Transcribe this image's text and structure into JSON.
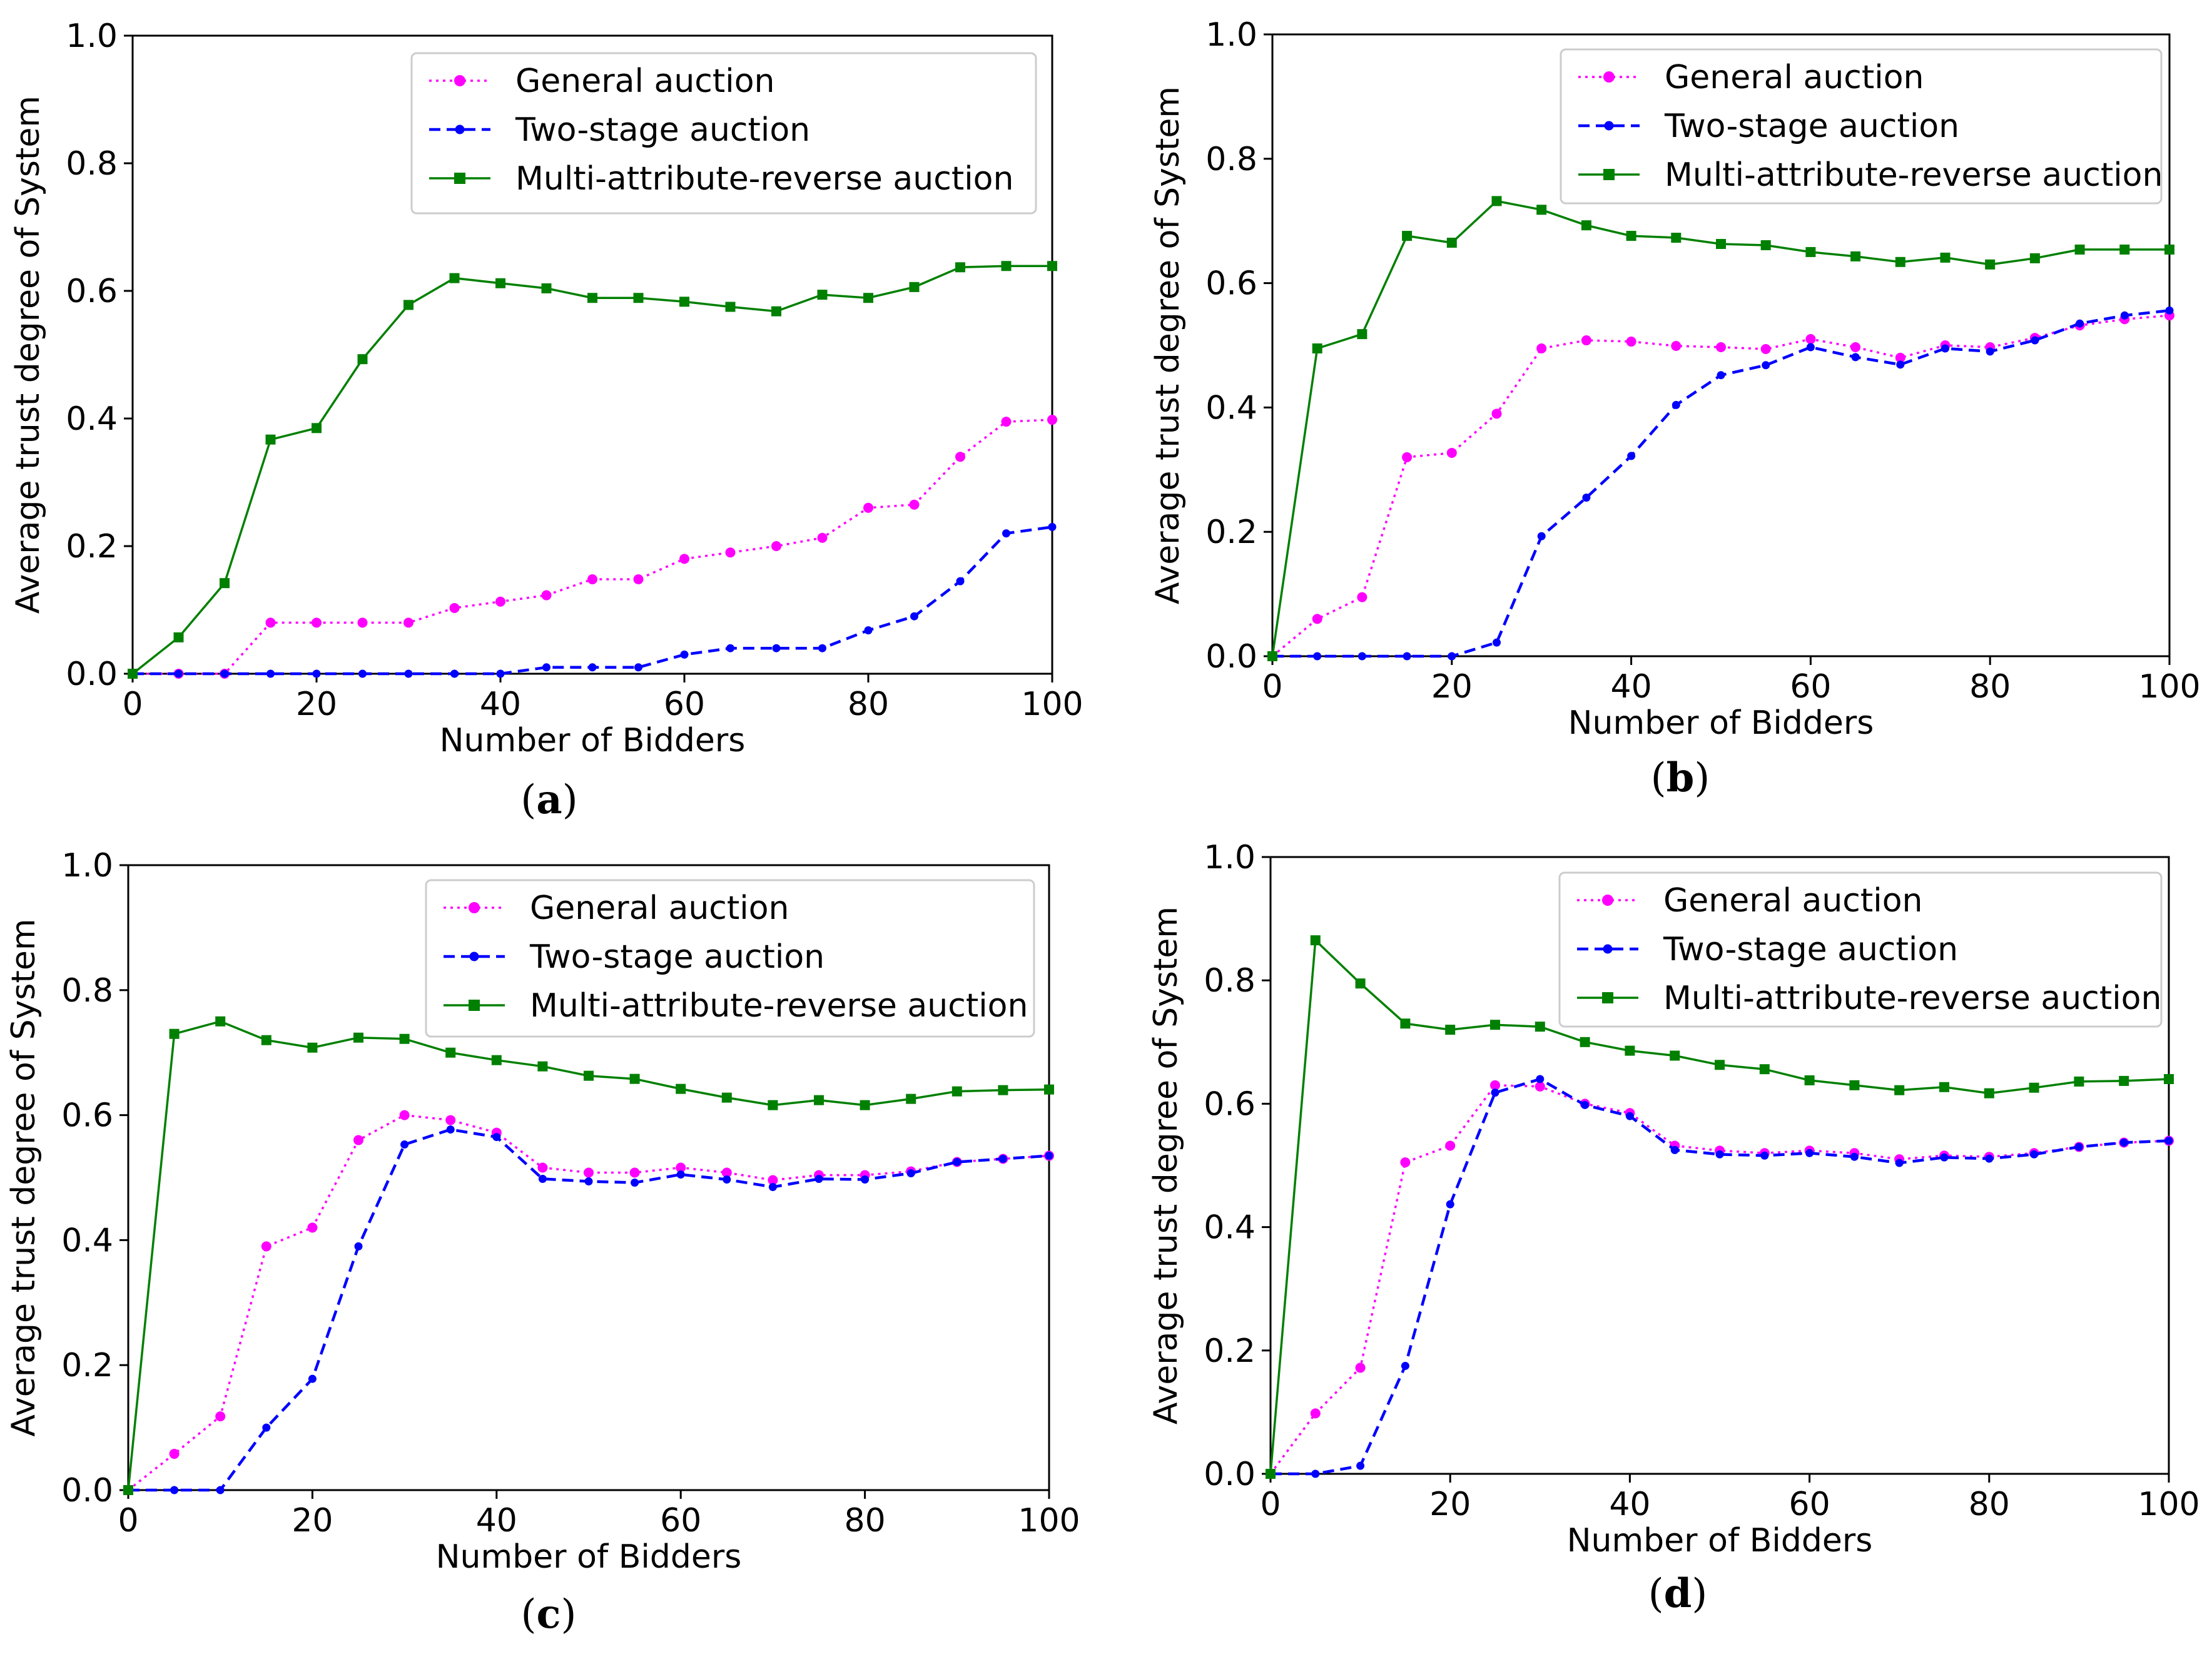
{
  "figure_title": "Average trust degree of System vs Number of Bidders",
  "colors": {
    "general": "#ff00ff",
    "two_stage": "#0000ff",
    "multi": "#008000",
    "axis": "#000000",
    "legend_border": "#cccccc"
  },
  "chart_data": [
    {
      "type": "line",
      "caption": "(a)",
      "caption_letter": "a",
      "xlabel": "Number of Bidders",
      "ylabel": "Average trust degree of System",
      "xlim": [
        0,
        100
      ],
      "ylim": [
        0,
        1.0
      ],
      "xticks": [
        "0",
        "20",
        "40",
        "60",
        "80",
        "100"
      ],
      "yticks": [
        "0.0",
        "0.2",
        "0.4",
        "0.6",
        "0.8",
        "1.0"
      ],
      "legend_position": "upper-center",
      "x": [
        0,
        5,
        10,
        15,
        20,
        25,
        30,
        35,
        40,
        45,
        50,
        55,
        60,
        65,
        70,
        75,
        80,
        85,
        90,
        95,
        100
      ],
      "series": [
        {
          "name": "General auction",
          "key": "general",
          "values": [
            0,
            0,
            0,
            0.08,
            0.08,
            0.08,
            0.08,
            0.103,
            0.113,
            0.123,
            0.148,
            0.148,
            0.18,
            0.19,
            0.2,
            0.213,
            0.26,
            0.265,
            0.34,
            0.395,
            0.398
          ]
        },
        {
          "name": "Two-stage auction",
          "key": "two_stage",
          "values": [
            0,
            0,
            0,
            0,
            0,
            0,
            0,
            0,
            0,
            0.01,
            0.01,
            0.01,
            0.03,
            0.04,
            0.04,
            0.04,
            0.068,
            0.09,
            0.145,
            0.22,
            0.23
          ]
        },
        {
          "name": "Multi-attribute-reverse auction",
          "key": "multi",
          "values": [
            0,
            0.057,
            0.142,
            0.367,
            0.385,
            0.493,
            0.578,
            0.62,
            0.612,
            0.604,
            0.589,
            0.589,
            0.583,
            0.575,
            0.568,
            0.594,
            0.589,
            0.606,
            0.637,
            0.639,
            0.639
          ]
        }
      ]
    },
    {
      "type": "line",
      "caption": "(b)",
      "caption_letter": "b",
      "xlabel": "Number of Bidders",
      "ylabel": "Average trust degree of System",
      "xlim": [
        0,
        100
      ],
      "ylim": [
        0,
        1.0
      ],
      "xticks": [
        "0",
        "20",
        "40",
        "60",
        "80",
        "100"
      ],
      "yticks": [
        "0.0",
        "0.2",
        "0.4",
        "0.6",
        "0.8",
        "1.0"
      ],
      "legend_position": "upper-right",
      "x": [
        0,
        5,
        10,
        15,
        20,
        25,
        30,
        35,
        40,
        45,
        50,
        55,
        60,
        65,
        70,
        75,
        80,
        85,
        90,
        95,
        100
      ],
      "series": [
        {
          "name": "General auction",
          "key": "general",
          "values": [
            0,
            0.06,
            0.095,
            0.32,
            0.327,
            0.39,
            0.495,
            0.508,
            0.506,
            0.499,
            0.497,
            0.494,
            0.51,
            0.497,
            0.48,
            0.5,
            0.497,
            0.512,
            0.532,
            0.542,
            0.548
          ]
        },
        {
          "name": "Two-stage auction",
          "key": "two_stage",
          "values": [
            0,
            0,
            0,
            0,
            0,
            0.022,
            0.193,
            0.255,
            0.322,
            0.404,
            0.452,
            0.468,
            0.497,
            0.481,
            0.469,
            0.495,
            0.49,
            0.508,
            0.535,
            0.548,
            0.556
          ]
        },
        {
          "name": "Multi-attribute-reverse auction",
          "key": "multi",
          "values": [
            0,
            0.495,
            0.518,
            0.676,
            0.665,
            0.732,
            0.718,
            0.693,
            0.676,
            0.673,
            0.663,
            0.661,
            0.65,
            0.643,
            0.634,
            0.641,
            0.63,
            0.64,
            0.654,
            0.654,
            0.654
          ]
        }
      ]
    },
    {
      "type": "line",
      "caption": "(c)",
      "caption_letter": "c",
      "xlabel": "Number of Bidders",
      "ylabel": "Average trust degree of System",
      "xlim": [
        0,
        100
      ],
      "ylim": [
        0,
        1.0
      ],
      "xticks": [
        "0",
        "20",
        "40",
        "60",
        "80",
        "100"
      ],
      "yticks": [
        "0.0",
        "0.2",
        "0.4",
        "0.6",
        "0.8",
        "1.0"
      ],
      "legend_position": "upper-right",
      "x": [
        0,
        5,
        10,
        15,
        20,
        25,
        30,
        35,
        40,
        45,
        50,
        55,
        60,
        65,
        70,
        75,
        80,
        85,
        90,
        95,
        100
      ],
      "series": [
        {
          "name": "General auction",
          "key": "general",
          "values": [
            0,
            0.058,
            0.118,
            0.39,
            0.42,
            0.56,
            0.6,
            0.592,
            0.572,
            0.516,
            0.508,
            0.508,
            0.516,
            0.508,
            0.496,
            0.504,
            0.504,
            0.51,
            0.525,
            0.53,
            0.535
          ]
        },
        {
          "name": "Two-stage auction",
          "key": "two_stage",
          "values": [
            0,
            0,
            0,
            0.1,
            0.178,
            0.39,
            0.553,
            0.577,
            0.565,
            0.498,
            0.494,
            0.492,
            0.505,
            0.497,
            0.485,
            0.498,
            0.497,
            0.507,
            0.525,
            0.53,
            0.535
          ]
        },
        {
          "name": "Multi-attribute-reverse auction",
          "key": "multi",
          "values": [
            0,
            0.73,
            0.75,
            0.72,
            0.708,
            0.724,
            0.722,
            0.7,
            0.688,
            0.678,
            0.663,
            0.658,
            0.642,
            0.628,
            0.616,
            0.624,
            0.616,
            0.626,
            0.638,
            0.64,
            0.641
          ]
        }
      ]
    },
    {
      "type": "line",
      "caption": "(d)",
      "caption_letter": "d",
      "xlabel": "Number of Bidders",
      "ylabel": "Average trust degree of System",
      "xlim": [
        0,
        100
      ],
      "ylim": [
        0,
        1.0
      ],
      "xticks": [
        "0",
        "20",
        "40",
        "60",
        "80",
        "100"
      ],
      "yticks": [
        "0.0",
        "0.2",
        "0.4",
        "0.6",
        "0.8",
        "1.0"
      ],
      "legend_position": "upper-right",
      "x": [
        0,
        5,
        10,
        15,
        20,
        25,
        30,
        35,
        40,
        45,
        50,
        55,
        60,
        65,
        70,
        75,
        80,
        85,
        90,
        95,
        100
      ],
      "series": [
        {
          "name": "General auction",
          "key": "general",
          "values": [
            0,
            0.098,
            0.172,
            0.505,
            0.532,
            0.63,
            0.628,
            0.6,
            0.585,
            0.532,
            0.524,
            0.52,
            0.524,
            0.52,
            0.51,
            0.516,
            0.514,
            0.52,
            0.53,
            0.537,
            0.54
          ]
        },
        {
          "name": "Two-stage auction",
          "key": "two_stage",
          "values": [
            0,
            0,
            0.013,
            0.175,
            0.437,
            0.618,
            0.64,
            0.598,
            0.58,
            0.525,
            0.518,
            0.516,
            0.52,
            0.514,
            0.504,
            0.513,
            0.511,
            0.518,
            0.53,
            0.537,
            0.54
          ]
        },
        {
          "name": "Multi-attribute-reverse auction",
          "key": "multi",
          "values": [
            0,
            0.865,
            0.795,
            0.73,
            0.72,
            0.728,
            0.725,
            0.7,
            0.686,
            0.678,
            0.663,
            0.656,
            0.638,
            0.63,
            0.622,
            0.627,
            0.617,
            0.626,
            0.636,
            0.637,
            0.64
          ]
        }
      ]
    }
  ]
}
